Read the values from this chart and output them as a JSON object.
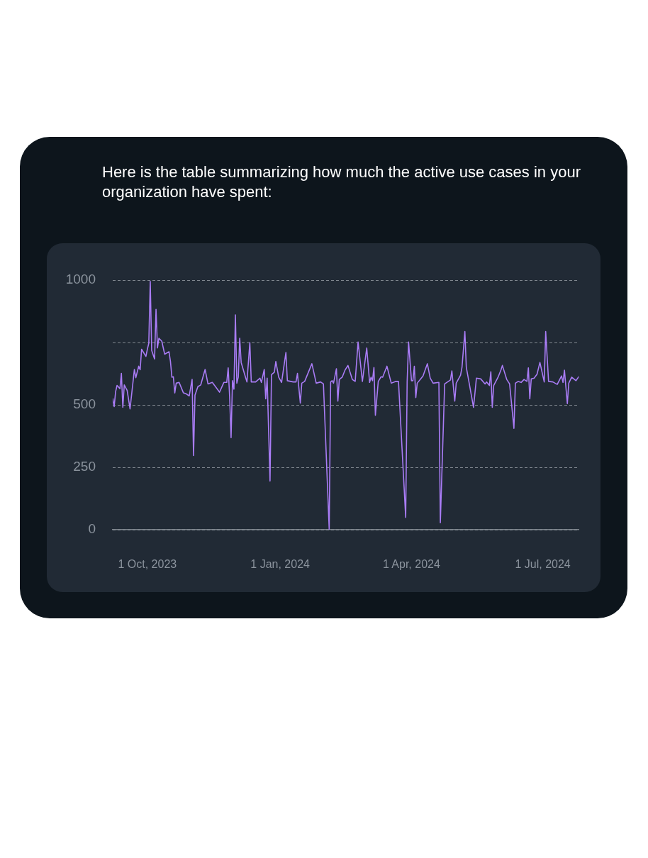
{
  "chart_data": {
    "type": "line",
    "title": "Here is the table summarizing how much the active use cases in your organization have spent:",
    "x": [
      "2023-09-07",
      "2023-09-08",
      "2023-09-09",
      "2023-09-10",
      "2023-09-12",
      "2023-09-13",
      "2023-09-14",
      "2023-09-15",
      "2023-09-17",
      "2023-09-19",
      "2023-09-22",
      "2023-09-23",
      "2023-09-25",
      "2023-09-26",
      "2023-09-27",
      "2023-09-30",
      "2023-10-01",
      "2023-10-02",
      "2023-10-03",
      "2023-10-04",
      "2023-10-06",
      "2023-10-07",
      "2023-10-08",
      "2023-10-09",
      "2023-10-11",
      "2023-10-13",
      "2023-10-16",
      "2023-10-17",
      "2023-10-18",
      "2023-10-19",
      "2023-10-20",
      "2023-10-21",
      "2023-10-23",
      "2023-10-26",
      "2023-10-28",
      "2023-10-30",
      "2023-11-01",
      "2023-11-02",
      "2023-11-03",
      "2023-11-05",
      "2023-11-07",
      "2023-11-10",
      "2023-11-12",
      "2023-11-15",
      "2023-11-20",
      "2023-11-23",
      "2023-11-25",
      "2023-11-26",
      "2023-11-27",
      "2023-11-28",
      "2023-11-29",
      "2023-11-30",
      "2023-12-01",
      "2023-12-02",
      "2023-12-03",
      "2023-12-04",
      "2023-12-05",
      "2023-12-08",
      "2023-12-09",
      "2023-12-11",
      "2023-12-12",
      "2023-12-15",
      "2023-12-18",
      "2023-12-19",
      "2023-12-21",
      "2023-12-22",
      "2023-12-23",
      "2023-12-25",
      "2023-12-26",
      "2023-12-28",
      "2023-12-29",
      "2023-12-31",
      "2024-01-02",
      "2024-01-05",
      "2024-01-06",
      "2024-01-10",
      "2024-01-12",
      "2024-01-13",
      "2024-01-15",
      "2024-01-16",
      "2024-01-18",
      "2024-01-23",
      "2024-01-26",
      "2024-01-29",
      "2024-01-31",
      "2024-02-04",
      "2024-02-05",
      "2024-02-06",
      "2024-02-07",
      "2024-02-09",
      "2024-02-10",
      "2024-02-11",
      "2024-02-13",
      "2024-02-15",
      "2024-02-17",
      "2024-02-20",
      "2024-02-22",
      "2024-02-24",
      "2024-02-27",
      "2024-03-01",
      "2024-03-03",
      "2024-03-04",
      "2024-03-05",
      "2024-03-06",
      "2024-03-07",
      "2024-03-09",
      "2024-03-11",
      "2024-03-12",
      "2024-03-15",
      "2024-03-18",
      "2024-03-21",
      "2024-03-23",
      "2024-03-28",
      "2024-03-29",
      "2024-03-30",
      "2024-04-01",
      "2024-04-02",
      "2024-04-03",
      "2024-04-04",
      "2024-04-05",
      "2024-04-09",
      "2024-04-12",
      "2024-04-14",
      "2024-04-16",
      "2024-04-20",
      "2024-04-21",
      "2024-04-24",
      "2024-04-28",
      "2024-04-29",
      "2024-05-01",
      "2024-05-02",
      "2024-05-05",
      "2024-05-06",
      "2024-05-08",
      "2024-05-09",
      "2024-05-11",
      "2024-05-14",
      "2024-05-16",
      "2024-05-19",
      "2024-05-22",
      "2024-05-23",
      "2024-05-25",
      "2024-05-26",
      "2024-05-27",
      "2024-05-28",
      "2024-05-31",
      "2024-06-02",
      "2024-06-03",
      "2024-06-06",
      "2024-06-08",
      "2024-06-11",
      "2024-06-12",
      "2024-06-14",
      "2024-06-16",
      "2024-06-18",
      "2024-06-20",
      "2024-06-21",
      "2024-06-22",
      "2024-06-23",
      "2024-06-25",
      "2024-06-27",
      "2024-06-29",
      "2024-07-02",
      "2024-07-03",
      "2024-07-05",
      "2024-07-08",
      "2024-07-11",
      "2024-07-14",
      "2024-07-15",
      "2024-07-16",
      "2024-07-18",
      "2024-07-19",
      "2024-07-21",
      "2024-07-24",
      "2024-07-26"
    ],
    "series": [
      {
        "color": "#a97cf5",
        "values": [
          526,
          493,
          553,
          578,
          565,
          626,
          490,
          580,
          558,
          484,
          642,
          609,
          655,
          641,
          723,
          694,
          723,
          747,
          995,
          718,
          684,
          883,
          728,
          767,
          755,
          703,
          713,
          674,
          611,
          613,
          548,
          587,
          590,
          548,
          544,
          536,
          602,
          297,
          539,
          573,
          580,
          642,
          584,
          590,
          551,
          590,
          590,
          648,
          534,
          369,
          597,
          563,
          861,
          587,
          611,
          767,
          670,
          611,
          592,
          749,
          592,
          592,
          607,
          590,
          642,
          524,
          607,
          195,
          621,
          631,
          674,
          611,
          590,
          710,
          597,
          592,
          592,
          626,
          507,
          587,
          594,
          665,
          587,
          592,
          584,
          0,
          592,
          597,
          587,
          645,
          515,
          602,
          611,
          640,
          658,
          602,
          594,
          752,
          594,
          728,
          590,
          611,
          597,
          650,
          458,
          594,
          613,
          611,
          655,
          587,
          594,
          594,
          49,
          592,
          752,
          597,
          597,
          655,
          529,
          587,
          616,
          665,
          607,
          587,
          590,
          28,
          584,
          600,
          636,
          515,
          587,
          619,
          650,
          794,
          650,
          587,
          490,
          607,
          604,
          584,
          592,
          578,
          633,
          490,
          578,
          611,
          640,
          658,
          602,
          584,
          406,
          587,
          594,
          590,
          602,
          594,
          648,
          524,
          604,
          607,
          623,
          670,
          592,
          794,
          594,
          592,
          582,
          616,
          590,
          639,
          505,
          587,
          611,
          597,
          614
        ]
      }
    ],
    "xlim": [
      "2023-09-07",
      "2024-07-26"
    ],
    "xticks": [
      {
        "value": "2023-10-01",
        "label": "1 Oct, 2023"
      },
      {
        "value": "2024-01-01",
        "label": "1 Jan, 2024"
      },
      {
        "value": "2024-04-01",
        "label": "1 Apr, 2024"
      },
      {
        "value": "2024-07-01",
        "label": "1 Jul, 2024"
      }
    ],
    "ylim": [
      0,
      1000
    ],
    "yticks": [
      0,
      250,
      500,
      {
        "value": 750,
        "label": null
      },
      1000
    ],
    "grid": "y",
    "legend": false,
    "marker": "none",
    "line_style": "solid"
  }
}
